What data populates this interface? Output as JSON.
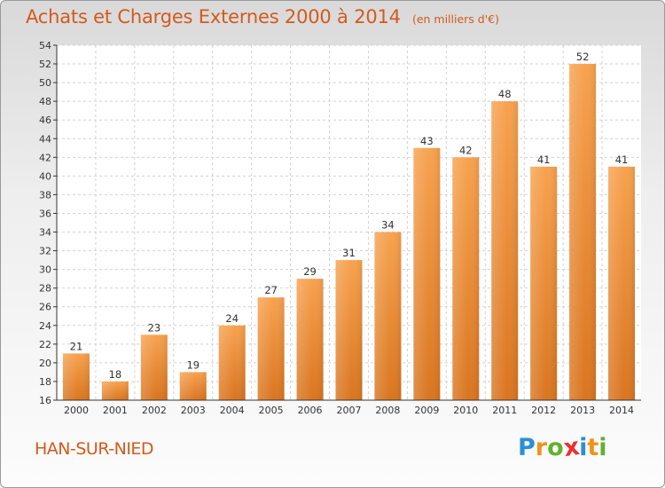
{
  "title": "Achats et Charges Externes 2000 à 2014",
  "subtitle": "(en milliers d'€)",
  "place": "HAN-SUR-NIED",
  "logo": {
    "letters": [
      "P",
      "r",
      "o",
      "x",
      "i",
      "t",
      "i"
    ],
    "colors": [
      "#2a8fd6",
      "#f2921c",
      "#62b22f",
      "#e8322f",
      "#2a8fd6",
      "#f2921c",
      "#62b22f"
    ]
  },
  "colors": {
    "accent": "#d35a1c",
    "bar_light": "#f7a24f",
    "bar_dark": "#d9751f",
    "grid": "#d2d2d2",
    "axis": "#333333"
  },
  "chart_data": {
    "type": "bar",
    "categories": [
      "2000",
      "2001",
      "2002",
      "2003",
      "2004",
      "2005",
      "2006",
      "2007",
      "2008",
      "2009",
      "2010",
      "2011",
      "2012",
      "2013",
      "2014"
    ],
    "values": [
      21,
      18,
      23,
      19,
      24,
      27,
      29,
      31,
      34,
      43,
      42,
      48,
      41,
      52,
      41
    ],
    "ylim": [
      16,
      54
    ],
    "ytick_step": 2,
    "grid": true,
    "data_labels": true
  }
}
